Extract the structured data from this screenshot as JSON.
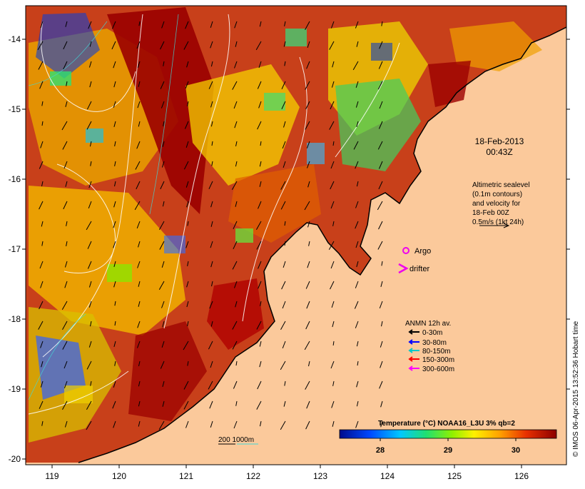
{
  "map": {
    "x_ticks": [
      "119",
      "120",
      "121",
      "122",
      "123",
      "124",
      "125",
      "126"
    ],
    "y_ticks": [
      "-14",
      "-15",
      "-16",
      "-17",
      "-18",
      "-19",
      "-20"
    ],
    "date_line1": "18-Feb-2013",
    "date_line2": "00:43Z",
    "altimetry_lines": [
      "Altimetric sealevel",
      "(0.1m contours)",
      "and velocity for",
      "18-Feb 00Z",
      "0.5m/s (1kt 24h)"
    ],
    "argo_label": "Argo",
    "drifter_label": "drifter",
    "anmn_title": "ANMN 12h av.",
    "anmn_items": [
      {
        "label": "0-30m",
        "color": "#000000"
      },
      {
        "label": "30-80m",
        "color": "#0000ff"
      },
      {
        "label": "80-150m",
        "color": "#00c8c8"
      },
      {
        "label": "150-300m",
        "color": "#ff0000"
      },
      {
        "label": "300-600m",
        "color": "#ff00ff"
      }
    ],
    "bathy_label": "200  1000m",
    "colorbar_title": "Temperature (°C) NOAA16_L3U 3% qb=2",
    "colorbar_ticks": [
      "28",
      "29",
      "30"
    ],
    "credit": "© IMOS 06-Apr-2015 13:52:36 Hobart time",
    "colors": {
      "land": "#fbc99b",
      "argo": "#ee00ee",
      "drifter": "#ee00ee"
    }
  }
}
